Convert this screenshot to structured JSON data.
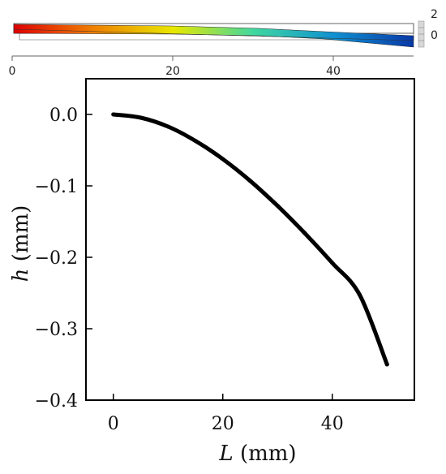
{
  "simulation_strip": {
    "x_ticks": [
      "0",
      "20",
      "40"
    ],
    "x_tick_values": [
      0,
      20,
      40
    ],
    "x_range": [
      0,
      50
    ],
    "side_scale_ticks": [
      "2",
      "0"
    ],
    "colormap": [
      "#e00000",
      "#f08000",
      "#e8e800",
      "#40d8a0",
      "#1090d0",
      "#0838a8"
    ]
  },
  "chart_data": {
    "type": "line",
    "title": "",
    "xlabel": {
      "var": "L",
      "unit": " (mm)"
    },
    "ylabel": {
      "var": "h",
      "unit": " (mm)"
    },
    "xlim": [
      -5,
      55
    ],
    "ylim": [
      -0.4,
      0.05
    ],
    "x_ticks": [
      0,
      20,
      40
    ],
    "x_tick_labels": [
      "0",
      "20",
      "40"
    ],
    "y_ticks": [
      0.0,
      -0.1,
      -0.2,
      -0.3,
      -0.4
    ],
    "y_tick_labels": [
      "0.0",
      "−0.1",
      "−0.2",
      "−0.3",
      "−0.4"
    ],
    "grid": false,
    "series": [
      {
        "color": "#000000",
        "x": [
          0,
          5,
          10,
          15,
          20,
          25,
          30,
          35,
          40,
          45,
          50
        ],
        "y": [
          0.0,
          -0.0045,
          -0.017,
          -0.037,
          -0.0625,
          -0.093,
          -0.128,
          -0.1665,
          -0.208,
          -0.2525,
          -0.35
        ]
      }
    ]
  }
}
